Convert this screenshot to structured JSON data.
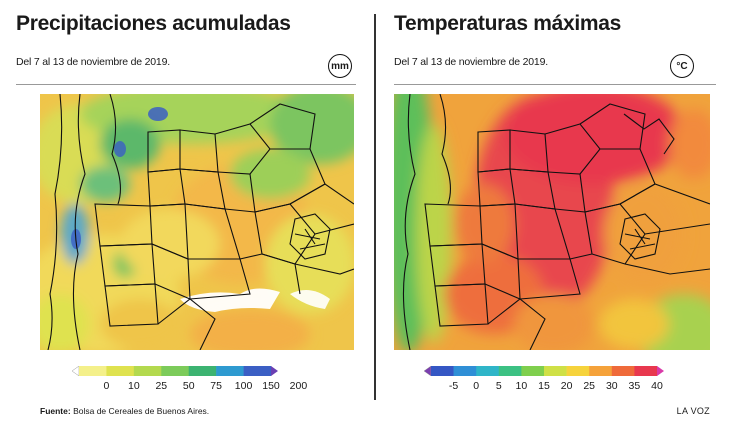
{
  "left": {
    "title": "Precipitaciones acumuladas",
    "subtitle": "Del 7 al 13 de noviembre de 2019.",
    "unit": "mm",
    "legend": {
      "labels": [
        "0",
        "10",
        "25",
        "50",
        "75",
        "100",
        "150",
        "200"
      ],
      "colors": [
        "#ffffff",
        "#f4f08a",
        "#dfe24f",
        "#b3d94e",
        "#7ccb5a",
        "#3cb371",
        "#2e9ad0",
        "#3b5fc4",
        "#6a3fb3"
      ]
    }
  },
  "right": {
    "title": "Temperaturas máximas",
    "subtitle": "Del 7 al 13 de noviembre de 2019.",
    "unit": "°C",
    "legend": {
      "labels": [
        "-5",
        "0",
        "5",
        "10",
        "15",
        "20",
        "25",
        "30",
        "35",
        "40"
      ],
      "colors": [
        "#7b3fb0",
        "#3557c4",
        "#2f8fd6",
        "#2fb5c8",
        "#3cc183",
        "#7fcf4d",
        "#cfe046",
        "#f6d33c",
        "#f5a23a",
        "#ef6a3a",
        "#e8384e",
        "#d93aa8"
      ]
    }
  },
  "footer": {
    "source_label": "Fuente:",
    "source_text": "Bolsa de Cereales de Buenos Aires.",
    "brand": "LA VOZ"
  }
}
